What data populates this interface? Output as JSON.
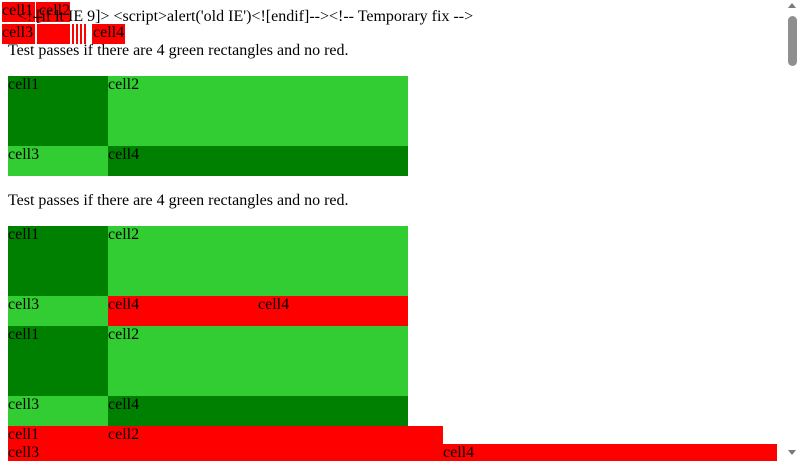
{
  "colors": {
    "fail": "#ff0000",
    "pass_dark": "#008000",
    "pass_light": "#32cd32",
    "scrollbar_thumb": "#8f8f8f"
  },
  "top": {
    "leaked_markup": "[if lt IE 9]> <script>alert('old IE')<![endif]--><!-- Temporary fix -->",
    "bleed_marker": "<!--",
    "cells": [
      "cell1",
      "cell2",
      "cell3",
      "cell4"
    ]
  },
  "tests": [
    {
      "instruction": "Test passes if there are 4 green rectangles and no red.",
      "cells": [
        "cell1",
        "cell2",
        "cell3",
        "cell4"
      ]
    },
    {
      "instruction": "Test passes if there are 4 green rectangles and no red.",
      "cells": [
        "cell1",
        "cell2",
        "cell3",
        "cell4"
      ],
      "extra_cell": "cell4"
    }
  ],
  "third_grid": {
    "cells": [
      "cell1",
      "cell2",
      "cell3",
      "cell4"
    ]
  },
  "bottom_grid": {
    "cells": [
      "cell1",
      "cell2",
      "cell3",
      "cell4"
    ]
  }
}
